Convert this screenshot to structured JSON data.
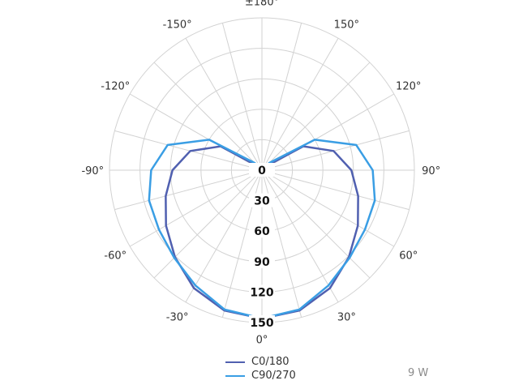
{
  "chart_data": {
    "type": "polar",
    "angle_labels": [
      {
        "deg": 0,
        "text": "0°"
      },
      {
        "deg": 30,
        "text": "30°"
      },
      {
        "deg": 60,
        "text": "60°"
      },
      {
        "deg": 90,
        "text": "90°"
      },
      {
        "deg": 120,
        "text": "120°"
      },
      {
        "deg": 150,
        "text": "150°"
      },
      {
        "deg": 180,
        "text": "±180°"
      },
      {
        "deg": -150,
        "text": "-150°"
      },
      {
        "deg": -120,
        "text": "-120°"
      },
      {
        "deg": -90,
        "text": "-90°"
      },
      {
        "deg": -60,
        "text": "-60°"
      },
      {
        "deg": -30,
        "text": "-30°"
      }
    ],
    "radial_ticks": [
      "0",
      "30",
      "60",
      "90",
      "120",
      "150"
    ],
    "radial_max": 150,
    "grid": true,
    "series": [
      {
        "name": "C0/180",
        "color": "#5060b0",
        "angles": [
          0,
          15,
          30,
          45,
          60,
          75,
          90,
          105,
          120,
          135,
          150,
          165,
          180
        ],
        "values": [
          146,
          143,
          134,
          121,
          109,
          98,
          88,
          73,
          47,
          5,
          0,
          0,
          0
        ]
      },
      {
        "name": "C90/270",
        "color": "#3a9ee4",
        "angles": [
          0,
          15,
          30,
          45,
          60,
          75,
          90,
          105,
          120,
          135,
          150,
          165,
          180
        ],
        "values": [
          146,
          142,
          131,
          122,
          117,
          115,
          109,
          96,
          60,
          10,
          0,
          0,
          0
        ]
      }
    ]
  },
  "annotation": "9 W"
}
